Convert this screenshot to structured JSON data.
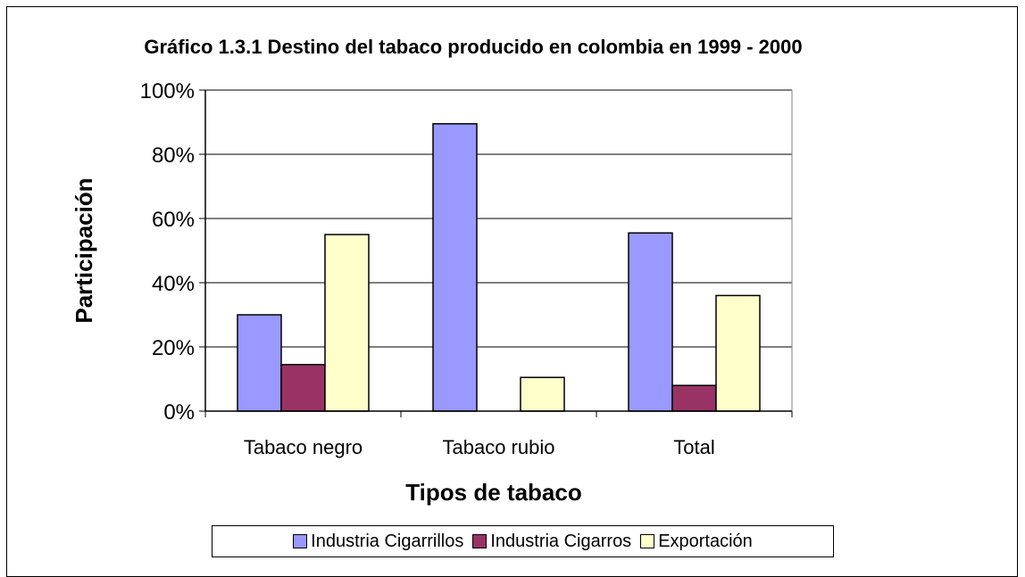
{
  "chart_data": {
    "type": "bar",
    "title": "Gráfico 1.3.1  Destino del tabaco producido en colombia en 1999 - 2000",
    "xlabel": "Tipos de tabaco",
    "ylabel": "Participación",
    "categories": [
      "Tabaco negro",
      "Tabaco rubio",
      "Total"
    ],
    "series": [
      {
        "name": "Industria Cigarrillos",
        "values": [
          30,
          89.5,
          55.5
        ],
        "color": "#9999ff"
      },
      {
        "name": "Industria Cigarros",
        "values": [
          14.5,
          0,
          8
        ],
        "color": "#993366"
      },
      {
        "name": "Exportación",
        "values": [
          55,
          10.5,
          36
        ],
        "color": "#ffffcc"
      }
    ],
    "ylim": [
      0,
      100
    ],
    "yticks": [
      "0%",
      "20%",
      "40%",
      "60%",
      "80%",
      "100%"
    ],
    "grid": true,
    "legend": "bottom"
  }
}
